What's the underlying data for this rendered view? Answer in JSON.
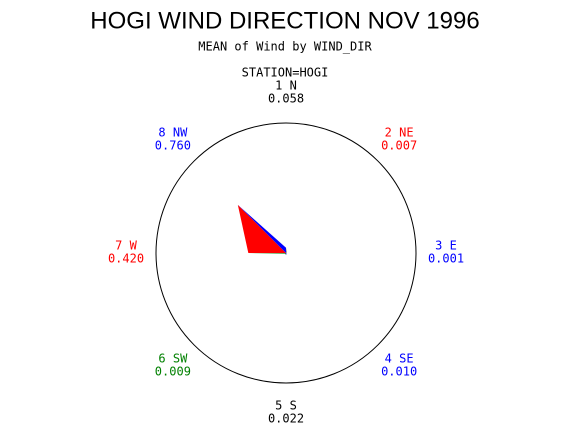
{
  "chart_data": {
    "type": "star",
    "title": "HOGI WIND DIRECTION NOV 1996",
    "subtitle": "MEAN of Wind by WIND_DIR",
    "station": "STATION=HOGI",
    "categories": [
      "1 N",
      "2 NE",
      "3 E",
      "4 SE",
      "5 S",
      "6 SW",
      "7 W",
      "8 NW"
    ],
    "values": [
      0.058,
      0.007,
      0.001,
      0.01,
      0.022,
      0.009,
      0.42,
      0.76
    ],
    "value_labels": [
      "0.058",
      "0.007",
      "0.001",
      "0.010",
      "0.022",
      "0.009",
      "0.420",
      "0.760"
    ],
    "colors": [
      "#000000",
      "#ff0000",
      "#0000ff",
      "#0000ff",
      "#000000",
      "#008000",
      "#ff0000",
      "#0000ff"
    ],
    "rlim": [
      0,
      1.45
    ]
  }
}
